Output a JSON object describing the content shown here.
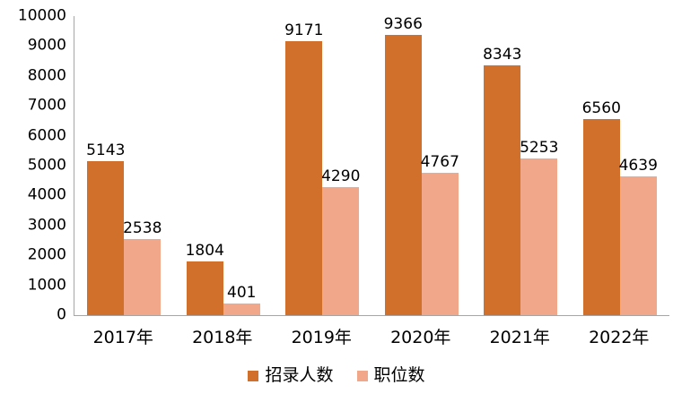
{
  "chart_data": {
    "type": "bar",
    "title": "",
    "xlabel": "",
    "ylabel": "",
    "categories": [
      "2017年",
      "2018年",
      "2019年",
      "2020年",
      "2021年",
      "2022年"
    ],
    "series": [
      {
        "name": "招录人数",
        "color": "#D0702A",
        "values": [
          5143,
          1804,
          9171,
          9366,
          8343,
          6560
        ]
      },
      {
        "name": "职位数",
        "color": "#F0A78A",
        "values": [
          2538,
          401,
          4290,
          4767,
          5253,
          4639
        ]
      }
    ],
    "ylim": [
      0,
      10000
    ],
    "yticks": [
      0,
      1000,
      2000,
      3000,
      4000,
      5000,
      6000,
      7000,
      8000,
      9000,
      10000
    ],
    "grid": false,
    "data_labels": true,
    "legend_position": "bottom"
  },
  "colors": {
    "axis": "#A6A6A6",
    "text": "#000000",
    "background": "#FFFFFF"
  }
}
